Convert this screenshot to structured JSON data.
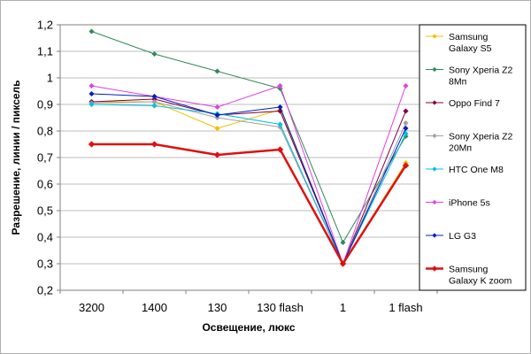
{
  "chart_data": {
    "type": "line",
    "xlabel": "Освещение, люкс",
    "ylabel": "Разрешение, линии / пиксель",
    "categories": [
      "3200",
      "1400",
      "130",
      "130 flash",
      "1",
      "1 flash"
    ],
    "ylim": [
      0.2,
      1.2
    ],
    "yticks": [
      "0,2",
      "0,3",
      "0,4",
      "0,5",
      "0,6",
      "0,7",
      "0,8",
      "0,9",
      "1",
      "1,1",
      "1,2"
    ],
    "grid": "horizontal",
    "legend_position": "right",
    "series": [
      {
        "name": "Samsung Galaxy S5",
        "label_lines": [
          "Samsung",
          "Galaxy S5"
        ],
        "color": "#f0c000",
        "values": [
          0.91,
          0.91,
          0.81,
          0.88,
          0.3,
          0.68
        ],
        "width": 1,
        "marker": "diamond"
      },
      {
        "name": "Sony Xperia Z2 8Мп",
        "label_lines": [
          "Sony Xperia Z2",
          "8Мп"
        ],
        "color": "#2e8b57",
        "values": [
          1.175,
          1.09,
          1.025,
          0.96,
          0.38,
          0.78
        ],
        "width": 1,
        "marker": "diamond"
      },
      {
        "name": "Oppo Find 7",
        "label_lines": [
          "Oppo Find 7"
        ],
        "color": "#800040",
        "values": [
          0.91,
          0.92,
          0.86,
          0.875,
          0.3,
          0.875
        ],
        "width": 1,
        "marker": "diamond"
      },
      {
        "name": "Sony Xperia Z2 20Мп",
        "label_lines": [
          "Sony Xperia Z2",
          "20Мп"
        ],
        "color": "#a0a0a0",
        "values": [
          0.905,
          0.91,
          0.85,
          0.815,
          0.3,
          0.83
        ],
        "width": 1,
        "marker": "diamond"
      },
      {
        "name": "HTC One M8",
        "label_lines": [
          "HTC One M8"
        ],
        "color": "#00c0e0",
        "values": [
          0.9,
          0.895,
          0.865,
          0.825,
          0.3,
          0.79
        ],
        "width": 1,
        "marker": "diamond"
      },
      {
        "name": "iPhone 5s",
        "label_lines": [
          "iPhone 5s"
        ],
        "color": "#e040e0",
        "values": [
          0.97,
          0.93,
          0.89,
          0.97,
          0.3,
          0.97
        ],
        "width": 1,
        "marker": "diamond"
      },
      {
        "name": "LG G3",
        "label_lines": [
          "LG G3"
        ],
        "color": "#0020c0",
        "values": [
          0.94,
          0.93,
          0.86,
          0.89,
          0.3,
          0.81
        ],
        "width": 1,
        "marker": "diamond"
      },
      {
        "name": "Samsung Galaxy K zoom",
        "label_lines": [
          "Samsung",
          "Galaxy K zoom"
        ],
        "color": "#e01010",
        "values": [
          0.75,
          0.75,
          0.71,
          0.73,
          0.3,
          0.67
        ],
        "width": 2.5,
        "marker": "diamond"
      }
    ]
  }
}
